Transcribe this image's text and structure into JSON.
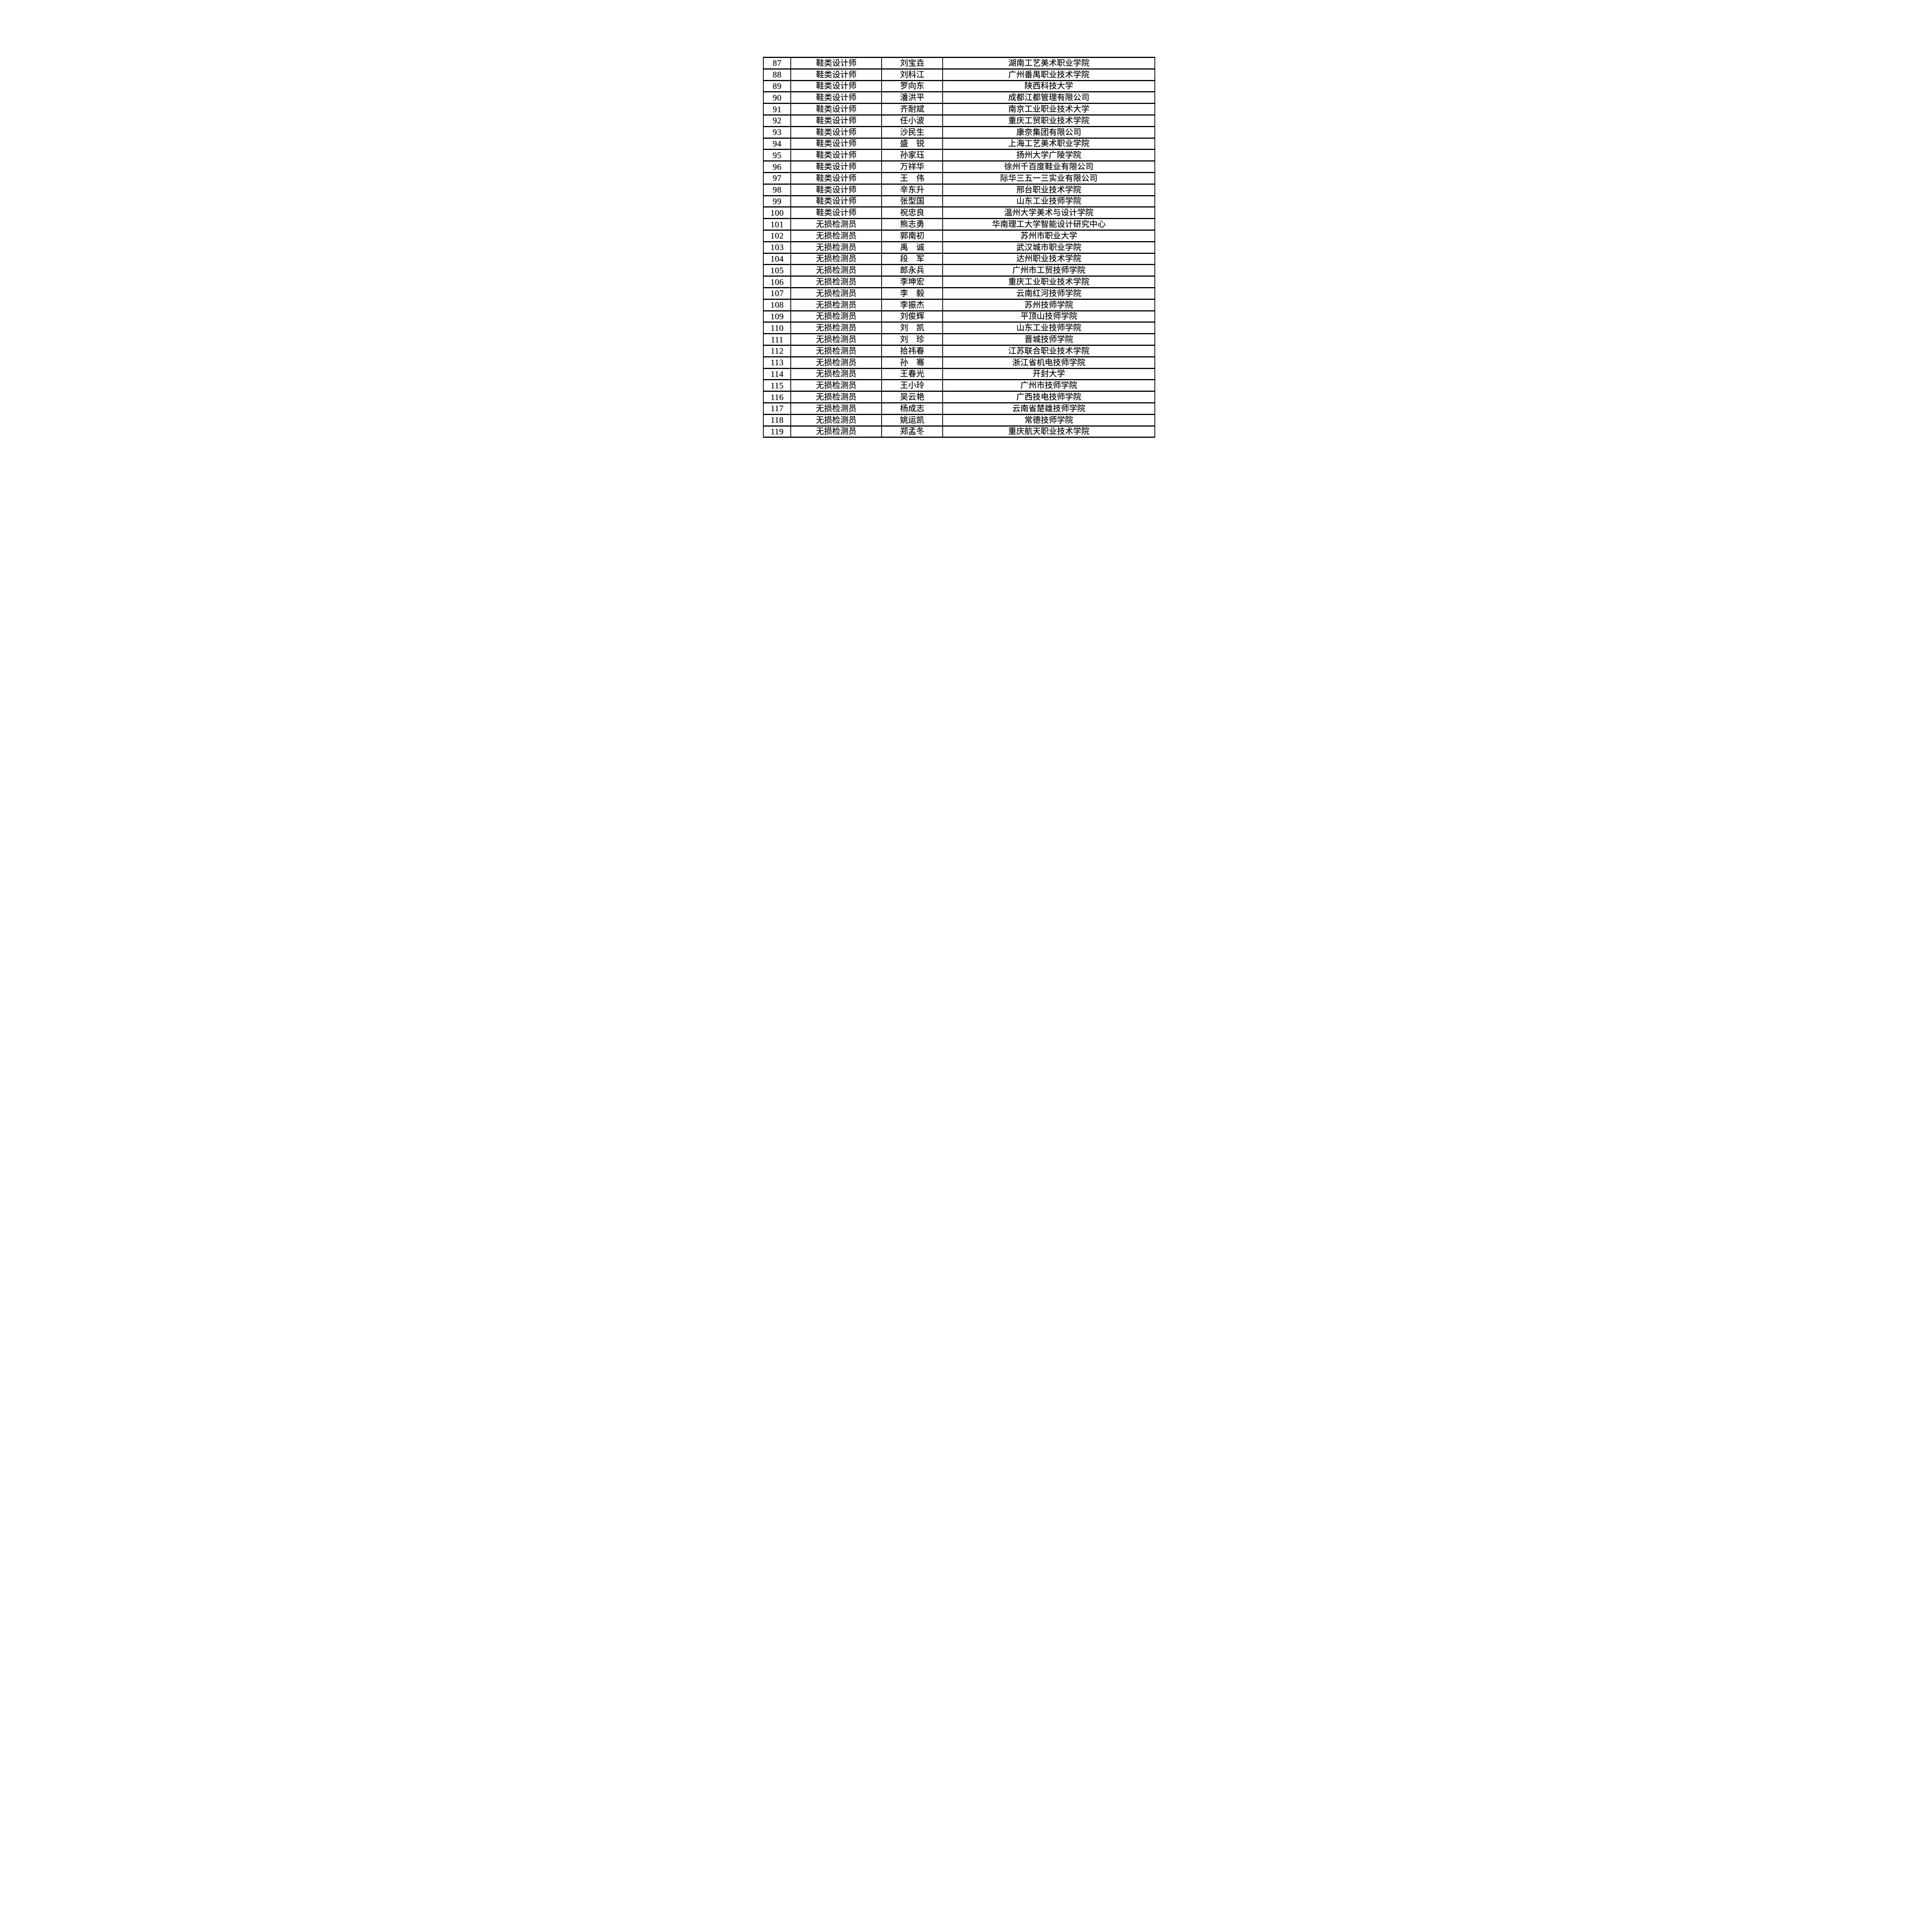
{
  "page": {
    "background": "#ffffff",
    "border_color": "#000000"
  },
  "table": {
    "columns": [
      {
        "key": "no"
      },
      {
        "key": "job"
      },
      {
        "key": "name"
      },
      {
        "key": "org"
      }
    ],
    "rows": [
      {
        "no": "87",
        "job": "鞋类设计师",
        "name": "刘宝垚",
        "org": "湖南工艺美术职业学院"
      },
      {
        "no": "88",
        "job": "鞋类设计师",
        "name": "刘科江",
        "org": "广州番禺职业技术学院"
      },
      {
        "no": "89",
        "job": "鞋类设计师",
        "name": "罗向东",
        "org": "陕西科技大学"
      },
      {
        "no": "90",
        "job": "鞋类设计师",
        "name": "潘洪平",
        "org": "成都江都管理有限公司"
      },
      {
        "no": "91",
        "job": "鞋类设计师",
        "name": "齐耐斌",
        "org": "南京工业职业技术大学"
      },
      {
        "no": "92",
        "job": "鞋类设计师",
        "name": "任小波",
        "org": "重庆工贸职业技术学院"
      },
      {
        "no": "93",
        "job": "鞋类设计师",
        "name": "沙民生",
        "org": "康奈集团有限公司"
      },
      {
        "no": "94",
        "job": "鞋类设计师",
        "name": "盛锐",
        "org": "上海工艺美术职业学院"
      },
      {
        "no": "95",
        "job": "鞋类设计师",
        "name": "孙家珏",
        "org": "扬州大学广陵学院"
      },
      {
        "no": "96",
        "job": "鞋类设计师",
        "name": "万祥华",
        "org": "徐州千百度鞋业有限公司"
      },
      {
        "no": "97",
        "job": "鞋类设计师",
        "name": "王伟",
        "org": "际华三五一三实业有限公司"
      },
      {
        "no": "98",
        "job": "鞋类设计师",
        "name": "辛东升",
        "org": "邢台职业技术学院"
      },
      {
        "no": "99",
        "job": "鞋类设计师",
        "name": "张型国",
        "org": "山东工业技师学院"
      },
      {
        "no": "100",
        "job": "鞋类设计师",
        "name": "祝忠良",
        "org": "温州大学美术与设计学院"
      },
      {
        "no": "101",
        "job": "无损检测员",
        "name": "熊志勇",
        "org": "华南理工大学智能设计研究中心"
      },
      {
        "no": "102",
        "job": "无损检测员",
        "name": "郭南初",
        "org": "苏州市职业大学"
      },
      {
        "no": "103",
        "job": "无损检测员",
        "name": "禹诚",
        "org": "武汉城市职业学院"
      },
      {
        "no": "104",
        "job": "无损检测员",
        "name": "段军",
        "org": "达州职业技术学院"
      },
      {
        "no": "105",
        "job": "无损检测员",
        "name": "郎永兵",
        "org": "广州市工贸技师学院"
      },
      {
        "no": "106",
        "job": "无损检测员",
        "name": "李坤宏",
        "org": "重庆工业职业技术学院"
      },
      {
        "no": "107",
        "job": "无损检测员",
        "name": "李毅",
        "org": "云南红河技师学院"
      },
      {
        "no": "108",
        "job": "无损检测员",
        "name": "李振杰",
        "org": "苏州技师学院"
      },
      {
        "no": "109",
        "job": "无损检测员",
        "name": "刘俊辉",
        "org": "平顶山技师学院"
      },
      {
        "no": "110",
        "job": "无损检测员",
        "name": "刘凯",
        "org": "山东工业技师学院"
      },
      {
        "no": "111",
        "job": "无损检测员",
        "name": "刘珍",
        "org": "晋城技师学院"
      },
      {
        "no": "112",
        "job": "无损检测员",
        "name": "拾祎春",
        "org": "江苏联合职业技术学院"
      },
      {
        "no": "113",
        "job": "无损检测员",
        "name": "孙骞",
        "org": "浙江省机电技师学院"
      },
      {
        "no": "114",
        "job": "无损检测员",
        "name": "王春光",
        "org": "开封大学"
      },
      {
        "no": "115",
        "job": "无损检测员",
        "name": "王小玲",
        "org": "广州市技师学院"
      },
      {
        "no": "116",
        "job": "无损检测员",
        "name": "吴云艳",
        "org": "广西技电技师学院"
      },
      {
        "no": "117",
        "job": "无损检测员",
        "name": "杨成志",
        "org": "云南省楚雄技师学院"
      },
      {
        "no": "118",
        "job": "无损检测员",
        "name": "姚运凯",
        "org": "常德技师学院"
      },
      {
        "no": "119",
        "job": "无损检测员",
        "name": "郑孟冬",
        "org": "重庆航天职业技术学院"
      }
    ]
  }
}
